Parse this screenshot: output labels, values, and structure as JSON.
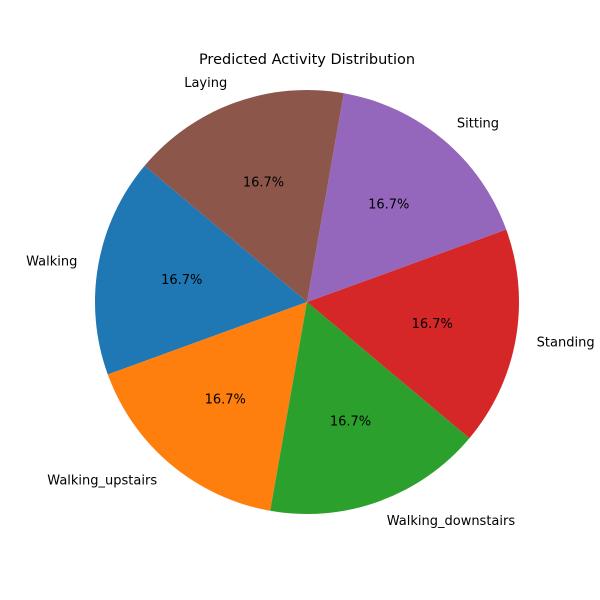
{
  "chart_data": {
    "type": "pie",
    "title": "Predicted Activity Distribution",
    "slices": [
      {
        "label": "Walking",
        "value": 1,
        "percent_label": "16.7%",
        "color": "#1f77b4"
      },
      {
        "label": "Walking_upstairs",
        "value": 1,
        "percent_label": "16.7%",
        "color": "#ff7f0e"
      },
      {
        "label": "Walking_downstairs",
        "value": 1,
        "percent_label": "16.7%",
        "color": "#2ca02c"
      },
      {
        "label": "Standing",
        "value": 1,
        "percent_label": "16.7%",
        "color": "#d62728"
      },
      {
        "label": "Sitting",
        "value": 1,
        "percent_label": "16.7%",
        "color": "#9467bd"
      },
      {
        "label": "Laying",
        "value": 1,
        "percent_label": "16.7%",
        "color": "#8c564b"
      }
    ],
    "start_angle_deg": 140,
    "direction": "counterclockwise",
    "legend": "none"
  }
}
